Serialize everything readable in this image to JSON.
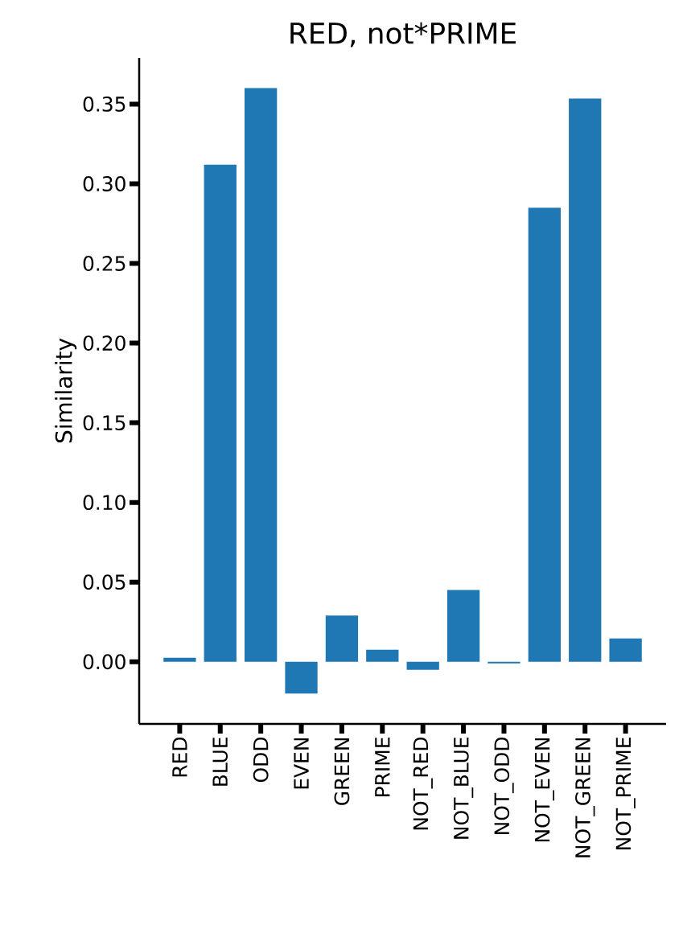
{
  "chart_data": {
    "type": "bar",
    "title": "RED, not*PRIME",
    "ylabel": "Similarity",
    "categories": [
      "RED",
      "BLUE",
      "ODD",
      "EVEN",
      "GREEN",
      "PRIME",
      "NOT_RED",
      "NOT_BLUE",
      "NOT_ODD",
      "NOT_EVEN",
      "NOT_GREEN",
      "NOT_PRIME"
    ],
    "values": [
      0.0025,
      0.312,
      0.36,
      -0.02,
      0.029,
      0.0076,
      -0.005,
      0.045,
      -0.001,
      0.285,
      0.3535,
      0.0146
    ],
    "color": "#1f77b4",
    "ylim": [
      -0.039,
      0.379
    ],
    "yticks": [
      {
        "value": 0,
        "label": "0.00"
      },
      {
        "value": 0.05,
        "label": "0.05"
      },
      {
        "value": 0.1,
        "label": "0.10"
      },
      {
        "value": 0.15,
        "label": "0.15"
      },
      {
        "value": 0.2,
        "label": "0.20"
      },
      {
        "value": 0.25,
        "label": "0.25"
      },
      {
        "value": 0.3,
        "label": "0.30"
      },
      {
        "value": 0.35,
        "label": "0.35"
      }
    ],
    "grid": false
  }
}
